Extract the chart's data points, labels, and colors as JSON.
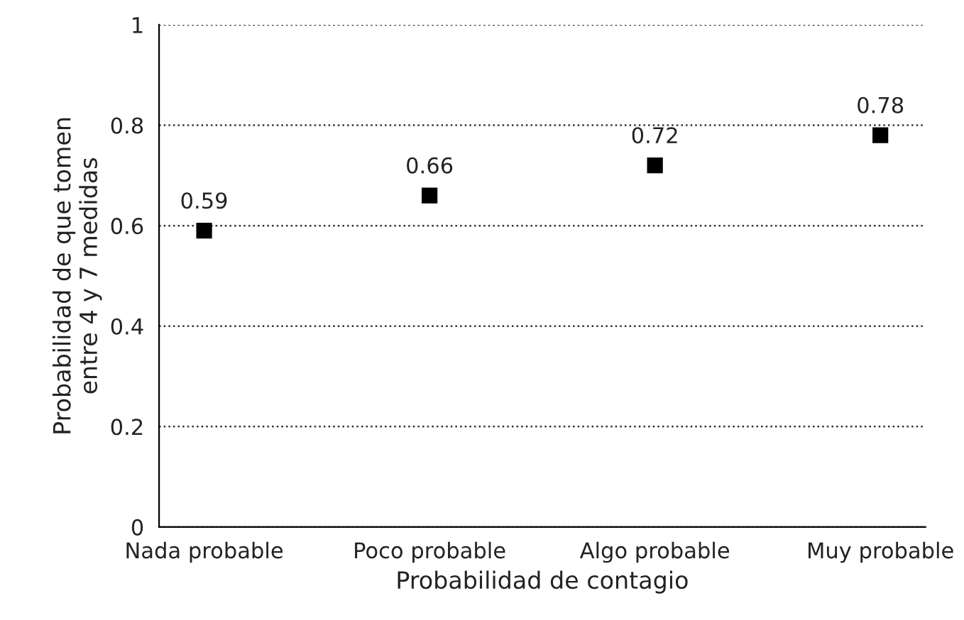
{
  "chart_data": {
    "type": "scatter",
    "xlabel": "Probabilidad de contagio",
    "ylabel": "Probabilidad de que tomen\nentre 4 y 7 medidas",
    "categories": [
      "Nada probable",
      "Poco probable",
      "Algo probable",
      "Muy probable"
    ],
    "values": [
      0.59,
      0.66,
      0.72,
      0.78
    ],
    "color": "#000000",
    "marker": "square",
    "ylim": [
      0,
      1
    ],
    "yticks": [
      0,
      0.2,
      0.4,
      0.6,
      0.8,
      1
    ],
    "grid": "y",
    "data_labels": true
  }
}
